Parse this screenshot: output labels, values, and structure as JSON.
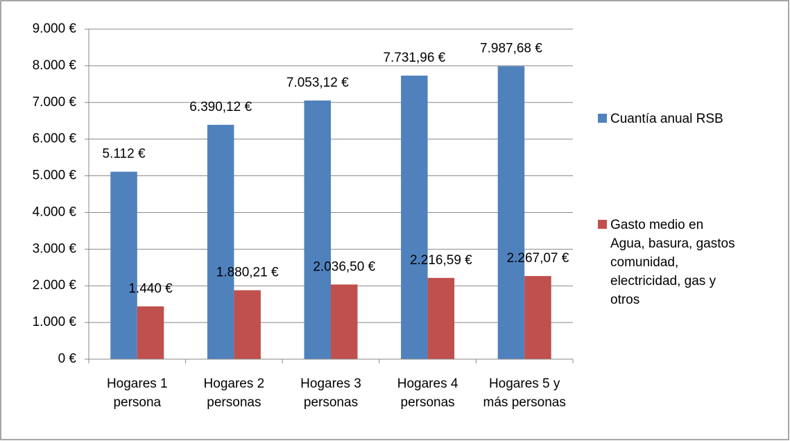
{
  "chart_data": {
    "type": "bar",
    "categories": [
      "Hogares 1 persona",
      "Hogares 2 personas",
      "Hogares 3 personas",
      "Hogares 4 personas",
      "Hogares 5 y más personas"
    ],
    "series": [
      {
        "name": "Cuantía anual RSB",
        "color": "#4f81bd",
        "values": [
          5112,
          6390.12,
          7053.12,
          7731.96,
          7987.68
        ],
        "value_labels": [
          "5.112 €",
          "6.390,12 €",
          "7.053,12 €",
          "7.731,96 €",
          "7.987,68 €"
        ]
      },
      {
        "name": "Gasto medio en Agua, basura, gastos comunidad, electricidad, gas y otros",
        "color": "#c0504d",
        "values": [
          1440,
          1880.21,
          2036.5,
          2216.59,
          2267.07
        ],
        "value_labels": [
          "1.440 €",
          "1.880,21 €",
          "2.036,50 €",
          "2.216,59 €",
          "2.267,07 €"
        ]
      }
    ],
    "ylim": [
      0,
      9000
    ],
    "yticks": [
      {
        "value": 0,
        "label": "0 €"
      },
      {
        "value": 1000,
        "label": "1.000 €"
      },
      {
        "value": 2000,
        "label": "2.000 €"
      },
      {
        "value": 3000,
        "label": "3.000 €"
      },
      {
        "value": 4000,
        "label": "4.000 €"
      },
      {
        "value": 5000,
        "label": "5.000 €"
      },
      {
        "value": 6000,
        "label": "6.000 €"
      },
      {
        "value": 7000,
        "label": "7.000 €"
      },
      {
        "value": 8000,
        "label": "8.000 €"
      },
      {
        "value": 9000,
        "label": "9.000 €"
      }
    ],
    "grid": true,
    "legend": "right"
  }
}
